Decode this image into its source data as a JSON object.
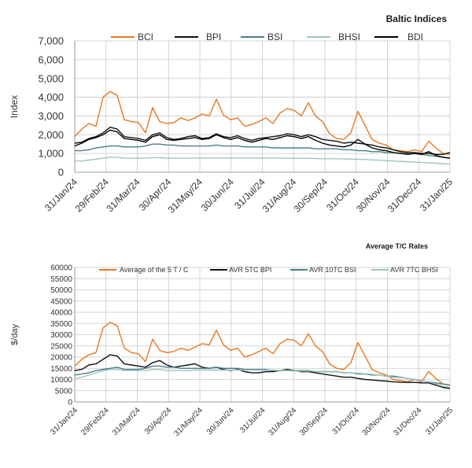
{
  "chart_data": [
    {
      "type": "line",
      "title": "Baltic Indices",
      "xlabel": "",
      "ylabel": "Index",
      "ylim": [
        0,
        7000
      ],
      "yticks": [
        "0",
        "1,000",
        "2,000",
        "3,000",
        "4,000",
        "5,000",
        "6,000",
        "7,000"
      ],
      "ytick_values": [
        0,
        1000,
        2000,
        3000,
        4000,
        5000,
        6000,
        7000
      ],
      "xticks": [
        "31/Jan/24",
        "29/Feb/24",
        "31/Mar/24",
        "30/Apr/24",
        "31/May/24",
        "30/Jun/24",
        "31/Jul/24",
        "31/Aug/24",
        "30/Sep/24",
        "31/Oct/24",
        "30/Nov/24",
        "31/Dec/24",
        "31/Jan/25"
      ],
      "grid": true,
      "legend_position": "top",
      "series": [
        {
          "name": "BCI",
          "color": "#e87722",
          "values": [
            1900,
            2300,
            2600,
            2450,
            4000,
            4300,
            4100,
            2800,
            2700,
            2650,
            2100,
            3450,
            2700,
            2600,
            2650,
            2900,
            2750,
            2900,
            3100,
            3000,
            3900,
            3050,
            2800,
            2900,
            2450,
            2550,
            2700,
            2900,
            2600,
            3150,
            3400,
            3300,
            3000,
            3700,
            3000,
            2700,
            2050,
            1800,
            1750,
            2100,
            3250,
            2500,
            1750,
            1550,
            1450,
            1200,
            1150,
            1100,
            1200,
            1100,
            1650,
            1300,
            1000,
            950
          ]
        },
        {
          "name": "BPI",
          "color": "#111111",
          "values": [
            1550,
            1600,
            1800,
            1900,
            2100,
            2400,
            2300,
            1900,
            1850,
            1800,
            1700,
            2000,
            2100,
            1850,
            1750,
            1800,
            1900,
            1950,
            1800,
            1850,
            2050,
            1900,
            1850,
            1950,
            1800,
            1700,
            1800,
            1850,
            1900,
            1950,
            2050,
            2000,
            1900,
            2000,
            1900,
            1750,
            1700,
            1650,
            1550,
            1600,
            1550,
            1500,
            1450,
            1350,
            1300,
            1200,
            1100,
            1050,
            1050,
            1000,
            1000,
            950,
            950,
            1050
          ]
        },
        {
          "name": "BSI",
          "color": "#4a7f86",
          "values": [
            1150,
            1150,
            1200,
            1300,
            1350,
            1400,
            1400,
            1350,
            1350,
            1350,
            1400,
            1500,
            1500,
            1450,
            1450,
            1400,
            1400,
            1400,
            1400,
            1400,
            1450,
            1400,
            1400,
            1400,
            1350,
            1350,
            1350,
            1350,
            1300,
            1300,
            1300,
            1300,
            1300,
            1300,
            1250,
            1250,
            1250,
            1250,
            1200,
            1200,
            1150,
            1150,
            1100,
            1100,
            1050,
            1050,
            1000,
            1000,
            1000,
            950,
            900,
            850,
            800,
            750
          ]
        },
        {
          "name": "BHSI",
          "color": "#9cc5c0",
          "values": [
            600,
            600,
            650,
            700,
            750,
            800,
            800,
            750,
            750,
            750,
            750,
            780,
            780,
            750,
            750,
            750,
            750,
            760,
            760,
            760,
            760,
            760,
            760,
            760,
            760,
            760,
            760,
            760,
            760,
            760,
            750,
            740,
            740,
            740,
            730,
            720,
            720,
            720,
            710,
            700,
            690,
            680,
            660,
            640,
            620,
            600,
            580,
            560,
            540,
            520,
            500,
            480,
            460,
            430
          ]
        },
        {
          "name": "BDI",
          "color": "#000000",
          "values": [
            1400,
            1550,
            1750,
            1850,
            2000,
            2250,
            2150,
            1800,
            1750,
            1700,
            1600,
            1900,
            2000,
            1750,
            1700,
            1750,
            1800,
            1850,
            1750,
            1800,
            2000,
            1850,
            1750,
            1850,
            1700,
            1600,
            1700,
            1800,
            1750,
            1850,
            1950,
            1900,
            1800,
            1900,
            1700,
            1550,
            1450,
            1400,
            1350,
            1450,
            1750,
            1500,
            1300,
            1200,
            1150,
            1050,
            1000,
            950,
            1000,
            950,
            1100,
            900,
            800,
            750
          ]
        }
      ]
    },
    {
      "type": "line",
      "title": "Average T/C Rates",
      "xlabel": "",
      "ylabel": "$/day",
      "ylim": [
        0,
        60000
      ],
      "yticks": [
        "0",
        "5000",
        "10000",
        "15000",
        "20000",
        "25000",
        "30000",
        "35000",
        "40000",
        "45000",
        "50000",
        "55000",
        "60000"
      ],
      "ytick_values": [
        0,
        5000,
        10000,
        15000,
        20000,
        25000,
        30000,
        35000,
        40000,
        45000,
        50000,
        55000,
        60000
      ],
      "xticks": [
        "31/Jan/24",
        "29/Feb/24",
        "31/Mar/24",
        "30/Apr/24",
        "31/May/24",
        "30/Jun/24",
        "31/Jul/24",
        "31/Aug/24",
        "30/Sep/24",
        "31/Oct/24",
        "30/Nov/24",
        "31/Dec/24",
        "31/Jan/25"
      ],
      "grid": true,
      "legend_position": "top",
      "series": [
        {
          "name": "Average of the 5 T / C",
          "color": "#e87722",
          "values": [
            16000,
            19000,
            21000,
            22000,
            33000,
            35500,
            34000,
            24000,
            22000,
            21500,
            18000,
            28000,
            23000,
            22000,
            22500,
            24000,
            23000,
            24500,
            26000,
            25500,
            32000,
            25500,
            23000,
            24000,
            20000,
            21000,
            22500,
            24000,
            21500,
            26000,
            28000,
            27500,
            25000,
            30500,
            25000,
            22500,
            17000,
            15000,
            14500,
            17500,
            26500,
            20500,
            14500,
            13000,
            12000,
            10000,
            9500,
            9000,
            10000,
            9000,
            13500,
            10500,
            8000,
            7500
          ]
        },
        {
          "name": "AVR 5TC BPI",
          "color": "#111111",
          "values": [
            14000,
            14500,
            16500,
            17000,
            19000,
            21000,
            20500,
            17000,
            16500,
            16000,
            15500,
            17500,
            18500,
            16500,
            15500,
            16000,
            16500,
            17000,
            15500,
            15000,
            15500,
            14500,
            14000,
            14500,
            13500,
            13000,
            13000,
            13500,
            13500,
            14000,
            14500,
            14000,
            13500,
            13500,
            13000,
            12500,
            12000,
            11500,
            11000,
            11000,
            10500,
            10000,
            9800,
            9500,
            9300,
            9000,
            8800,
            8700,
            8700,
            8500,
            8500,
            7500,
            6500,
            6000
          ]
        },
        {
          "name": "AVR 10TC BSI",
          "color": "#4a7f86",
          "values": [
            12000,
            12500,
            13000,
            14000,
            14500,
            15000,
            15500,
            14500,
            14500,
            14500,
            15000,
            16000,
            16000,
            15500,
            15500,
            15000,
            15000,
            15000,
            15000,
            15000,
            15500,
            15000,
            15000,
            15000,
            14500,
            14500,
            14500,
            14500,
            14000,
            14000,
            14000,
            14000,
            14000,
            14000,
            13500,
            13500,
            13500,
            13500,
            13000,
            13000,
            12500,
            12500,
            12000,
            12000,
            11500,
            11500,
            11000,
            10500,
            10000,
            9500,
            9000,
            8500,
            8000,
            7500
          ]
        },
        {
          "name": "AVR 7TC BHSI",
          "color": "#9cc5c0",
          "values": [
            10500,
            11000,
            12000,
            13000,
            14000,
            14500,
            14500,
            14000,
            14000,
            14000,
            14000,
            14500,
            14500,
            14000,
            14000,
            14000,
            14000,
            14200,
            14200,
            14200,
            14200,
            14200,
            14200,
            14200,
            14200,
            14200,
            14200,
            14200,
            14200,
            14000,
            14000,
            13800,
            13800,
            13800,
            13600,
            13400,
            13400,
            13400,
            13200,
            13000,
            12800,
            12600,
            12300,
            12000,
            11500,
            11000,
            10800,
            10500,
            10000,
            9500,
            9000,
            8000,
            7000,
            6500
          ]
        }
      ]
    }
  ]
}
